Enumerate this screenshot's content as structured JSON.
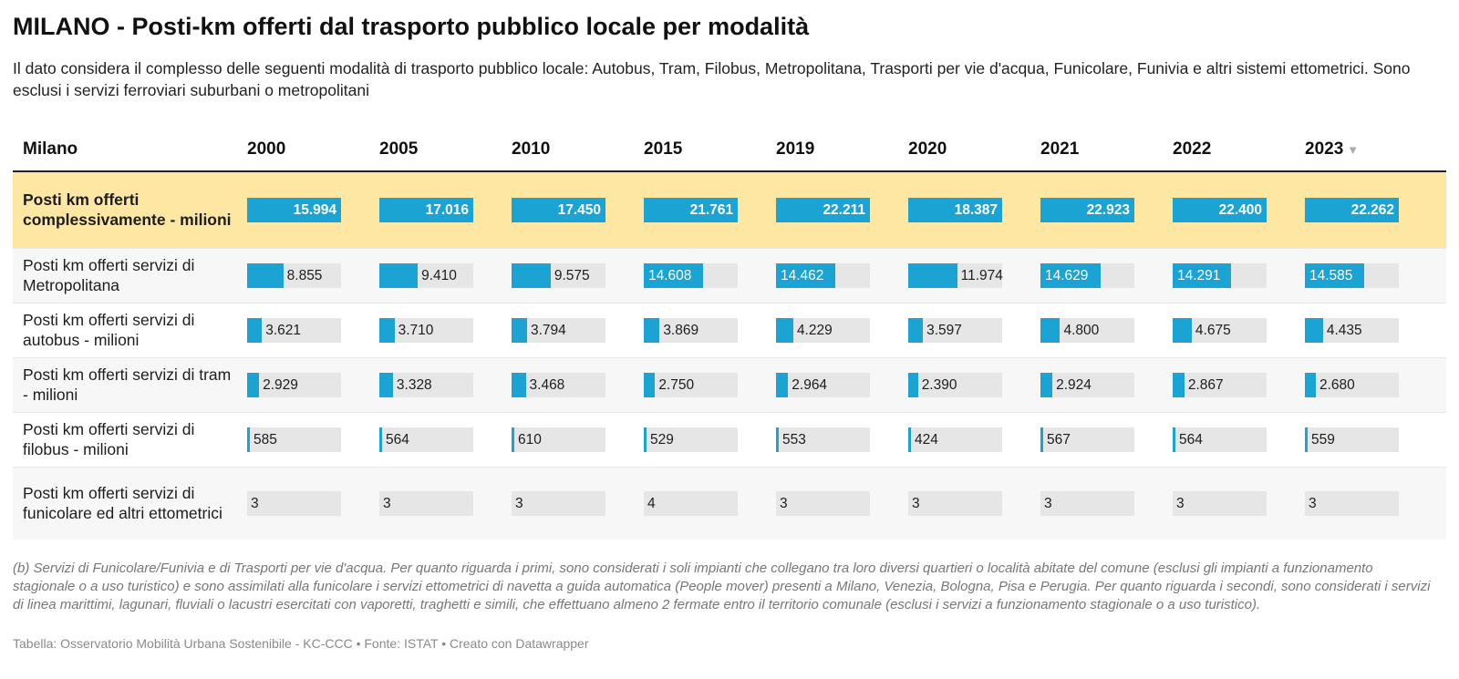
{
  "title": "MILANO - Posti-km offerti dal trasporto pubblico locale per modalità",
  "subtitle": "Il dato considera il complesso delle seguenti modalità di trasporto pubblico locale: Autobus, Tram, Filobus, Metropolitana, Trasporti per vie d'acqua, Funicolare, Funivia e altri sistemi ettometrici. Sono esclusi i servizi ferroviari suburbani o metropolitani",
  "sort_icon": "▼",
  "colors": {
    "bar": "#1ba3d4",
    "track": "#e6e6e6",
    "highlight": "#fde7a2"
  },
  "chart_data": {
    "type": "table",
    "row_header": "Milano",
    "columns": [
      "2000",
      "2005",
      "2010",
      "2015",
      "2019",
      "2020",
      "2021",
      "2022",
      "2023"
    ],
    "sorted_column": "2023",
    "sort_direction": "descending",
    "bar_max": 23000,
    "rows": [
      {
        "label": "Posti km offerti complessivamente - milioni",
        "highlight": true,
        "values": [
          15994,
          17016,
          17450,
          21761,
          22211,
          18387,
          22923,
          22400,
          22262
        ],
        "display": [
          "15.994",
          "17.016",
          "17.450",
          "21.761",
          "22.211",
          "18.387",
          "22.923",
          "22.400",
          "22.262"
        ]
      },
      {
        "label": "Posti km offerti servizi di Metropolitana",
        "highlight": false,
        "values": [
          8855,
          9410,
          9575,
          14608,
          14462,
          11974,
          14629,
          14291,
          14585
        ],
        "display": [
          "8.855",
          "9.410",
          "9.575",
          "14.608",
          "14.462",
          "11.974",
          "14.629",
          "14.291",
          "14.585"
        ]
      },
      {
        "label": "Posti km offerti servizi di autobus - milioni",
        "highlight": false,
        "values": [
          3621,
          3710,
          3794,
          3869,
          4229,
          3597,
          4800,
          4675,
          4435
        ],
        "display": [
          "3.621",
          "3.710",
          "3.794",
          "3.869",
          "4.229",
          "3.597",
          "4.800",
          "4.675",
          "4.435"
        ]
      },
      {
        "label": "Posti km offerti servizi di tram - milioni",
        "highlight": false,
        "values": [
          2929,
          3328,
          3468,
          2750,
          2964,
          2390,
          2924,
          2867,
          2680
        ],
        "display": [
          "2.929",
          "3.328",
          "3.468",
          "2.750",
          "2.964",
          "2.390",
          "2.924",
          "2.867",
          "2.680"
        ]
      },
      {
        "label": "Posti km offerti servizi di filobus - milioni",
        "highlight": false,
        "values": [
          585,
          564,
          610,
          529,
          553,
          424,
          567,
          564,
          559
        ],
        "display": [
          "585",
          "564",
          "610",
          "529",
          "553",
          "424",
          "567",
          "564",
          "559"
        ]
      },
      {
        "label": "Posti km offerti servizi di funicolare ed altri ettometrici",
        "highlight": false,
        "values": [
          3,
          3,
          3,
          4,
          3,
          3,
          3,
          3,
          3
        ],
        "display": [
          "3",
          "3",
          "3",
          "4",
          "3",
          "3",
          "3",
          "3",
          "3"
        ]
      }
    ]
  },
  "footnote": "(b) Servizi di Funicolare/Funivia e di Trasporti per vie d'acqua. Per quanto riguarda i primi, sono considerati i soli impianti che collegano tra loro diversi quartieri o località abitate del comune (esclusi gli impianti a funzionamento stagionale o a uso turistico) e sono assimilati alla funicolare i servizi ettometrici di navetta a guida automatica (People mover) presenti a Milano, Venezia, Bologna, Pisa e Perugia. Per quanto riguarda i secondi, sono considerati i servizi di linea marittimi, lagunari, fluviali o lacustri esercitati con vaporetti, traghetti e simili, che effettuano almeno 2 fermate entro il territorio comunale (esclusi i servizi a funzionamento stagionale o a uso turistico).",
  "byline": "Tabella: Osservatorio Mobilità Urbana Sostenibile - KC-CCC • Fonte: ISTAT • Creato con Datawrapper"
}
